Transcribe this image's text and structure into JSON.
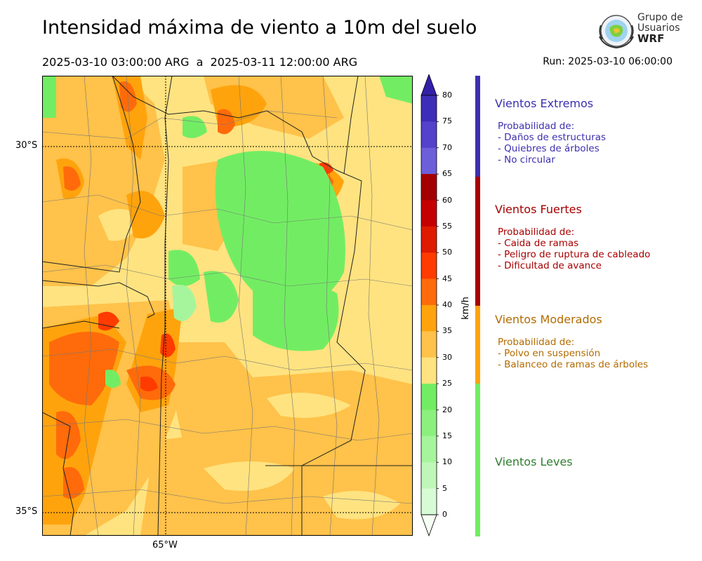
{
  "header": {
    "title": "Intensidad máxima de viento a 10m del suelo",
    "date_range": "2025-03-10 03:00:00 ARG  a  2025-03-11 12:00:00 ARG",
    "run": "Run: 2025-03-10 06:00:00"
  },
  "logo": {
    "line1": "Grupo de",
    "line2": "Usuarios",
    "line3": "WRF"
  },
  "map": {
    "lat_labels": [
      "30°S",
      "35°S"
    ],
    "lon_labels": [
      "65°W"
    ]
  },
  "colorbar": {
    "unit": "km/h",
    "ticks": [
      "0",
      "5",
      "10",
      "15",
      "20",
      "25",
      "30",
      "35",
      "40",
      "45",
      "50",
      "55",
      "60",
      "65",
      "70",
      "75",
      "80"
    ],
    "colors": [
      "#f0fff0",
      "#d7fbd4",
      "#bff7b8",
      "#a6f59c",
      "#8cf07f",
      "#72ed63",
      "#ffe380",
      "#ffc24a",
      "#ffa30d",
      "#ff6b0a",
      "#ff3b00",
      "#de1a00",
      "#c40000",
      "#a30000",
      "#6c5fd9",
      "#5441cc",
      "#3e2db8"
    ],
    "extend_top": "#3320a8",
    "extend_bottom": "#f6fff4"
  },
  "categories": [
    {
      "title": "Vientos Extremos",
      "color": "#3d2fb0",
      "intro": "Probabilidad de:",
      "items": [
        "- Daños de estructuras",
        "- Quiebres de árboles",
        "- No circular"
      ]
    },
    {
      "title": "Vientos Fuertes",
      "color": "#a80000",
      "intro": "Probabilidad de:",
      "items": [
        "- Caida de ramas",
        "- Peligro de ruptura de cableado",
        "- Dificultad de avance"
      ]
    },
    {
      "title": "Vientos Moderados",
      "color": "#b36b00",
      "intro": "Probabilidad de:",
      "items": [
        "- Polvo en suspensión",
        "- Balanceo de ramas de árboles"
      ]
    },
    {
      "title": "Vientos Leves",
      "color": "#2e7d2e",
      "intro": "",
      "items": []
    }
  ],
  "category_bar_colors": [
    "#3d2fb0",
    "#a80000",
    "#ffa30d",
    "#72ed63"
  ]
}
